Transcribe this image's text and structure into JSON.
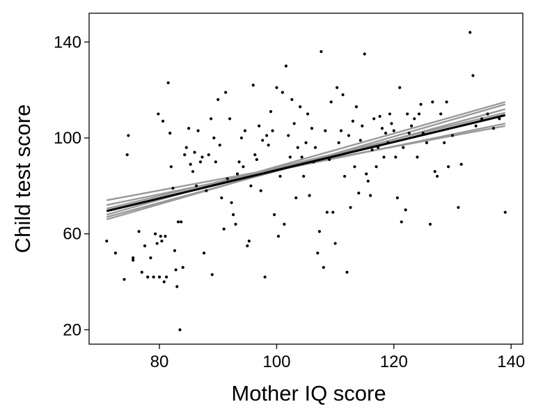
{
  "chart_data": {
    "type": "scatter",
    "xlabel": "Mother IQ score",
    "ylabel": "Child test score",
    "xlim": [
      68,
      142
    ],
    "ylim": [
      14,
      152
    ],
    "xticks": [
      80,
      100,
      120,
      140
    ],
    "yticks": [
      20,
      60,
      100,
      140
    ],
    "grid": false,
    "colors": {
      "points": "#000000",
      "fit_line": "#000000",
      "sim_lines": "#999999"
    },
    "points": [
      [
        71,
        57
      ],
      [
        72.5,
        52
      ],
      [
        74,
        41
      ],
      [
        74.5,
        93
      ],
      [
        74.7,
        101
      ],
      [
        75.5,
        49
      ],
      [
        75.5,
        50
      ],
      [
        76.5,
        61
      ],
      [
        77,
        44
      ],
      [
        77.5,
        55
      ],
      [
        78,
        42
      ],
      [
        78.5,
        50
      ],
      [
        79,
        42
      ],
      [
        79.3,
        60
      ],
      [
        79.6,
        56
      ],
      [
        79.8,
        110
      ],
      [
        80,
        42
      ],
      [
        80.2,
        59
      ],
      [
        80.4,
        57
      ],
      [
        80.6,
        107
      ],
      [
        80.8,
        40
      ],
      [
        81,
        59
      ],
      [
        81.2,
        42
      ],
      [
        81.5,
        123
      ],
      [
        81.8,
        102
      ],
      [
        82,
        88
      ],
      [
        82.3,
        79
      ],
      [
        82.6,
        53
      ],
      [
        82.8,
        45
      ],
      [
        83,
        38
      ],
      [
        83.2,
        65
      ],
      [
        83.5,
        20
      ],
      [
        83.7,
        65
      ],
      [
        84,
        46
      ],
      [
        84.3,
        93
      ],
      [
        84.6,
        96
      ],
      [
        85,
        104
      ],
      [
        85.3,
        89
      ],
      [
        85.7,
        86
      ],
      [
        86,
        94
      ],
      [
        86.3,
        80
      ],
      [
        86.6,
        103
      ],
      [
        87,
        90
      ],
      [
        87.3,
        92
      ],
      [
        87.6,
        52
      ],
      [
        88,
        78
      ],
      [
        88.4,
        93
      ],
      [
        88.8,
        108
      ],
      [
        89,
        43
      ],
      [
        89.3,
        100
      ],
      [
        89.6,
        90
      ],
      [
        90,
        116
      ],
      [
        90.3,
        97
      ],
      [
        90.6,
        75
      ],
      [
        91,
        62
      ],
      [
        91.3,
        119
      ],
      [
        91.6,
        83
      ],
      [
        92,
        108
      ],
      [
        92.3,
        73
      ],
      [
        92.6,
        68
      ],
      [
        93,
        64
      ],
      [
        93.3,
        85
      ],
      [
        93.6,
        90
      ],
      [
        94,
        100
      ],
      [
        94.3,
        88
      ],
      [
        94.6,
        103
      ],
      [
        95,
        55
      ],
      [
        95.3,
        57
      ],
      [
        95.6,
        80
      ],
      [
        96,
        122
      ],
      [
        96.3,
        93
      ],
      [
        96.6,
        91
      ],
      [
        97,
        105
      ],
      [
        97.3,
        78
      ],
      [
        97.6,
        99
      ],
      [
        98,
        42
      ],
      [
        98.3,
        101
      ],
      [
        98.6,
        97
      ],
      [
        99,
        111
      ],
      [
        99.3,
        103
      ],
      [
        99.6,
        68
      ],
      [
        100,
        121
      ],
      [
        100.3,
        59
      ],
      [
        100.6,
        84
      ],
      [
        101,
        119
      ],
      [
        101.3,
        64
      ],
      [
        101.6,
        130
      ],
      [
        102,
        101
      ],
      [
        102.3,
        92
      ],
      [
        102.6,
        116
      ],
      [
        103,
        106
      ],
      [
        103.3,
        75
      ],
      [
        103.6,
        96
      ],
      [
        104,
        113
      ],
      [
        104.3,
        92
      ],
      [
        104.6,
        84
      ],
      [
        105,
        98
      ],
      [
        105.3,
        110
      ],
      [
        105.6,
        76
      ],
      [
        106,
        104
      ],
      [
        106.3,
        90
      ],
      [
        106.6,
        96
      ],
      [
        107,
        52
      ],
      [
        107.3,
        61
      ],
      [
        107.6,
        136
      ],
      [
        108,
        46
      ],
      [
        108.3,
        103
      ],
      [
        108.6,
        69
      ],
      [
        109,
        91
      ],
      [
        109.3,
        115
      ],
      [
        109.6,
        69
      ],
      [
        110,
        56
      ],
      [
        110.3,
        121
      ],
      [
        110.6,
        98
      ],
      [
        111,
        103
      ],
      [
        111.3,
        118
      ],
      [
        111.6,
        84
      ],
      [
        112,
        44
      ],
      [
        112.3,
        101
      ],
      [
        112.6,
        71
      ],
      [
        113,
        107
      ],
      [
        113.3,
        88
      ],
      [
        113.6,
        113
      ],
      [
        114,
        77
      ],
      [
        114.3,
        99
      ],
      [
        114.6,
        105
      ],
      [
        115,
        135
      ],
      [
        115.3,
        85
      ],
      [
        115.6,
        82
      ],
      [
        116,
        76
      ],
      [
        116.3,
        95
      ],
      [
        116.6,
        108
      ],
      [
        117,
        88
      ],
      [
        117.3,
        96
      ],
      [
        117.6,
        109
      ],
      [
        118,
        104
      ],
      [
        118.3,
        92
      ],
      [
        118.6,
        102
      ],
      [
        119,
        98
      ],
      [
        119.3,
        110
      ],
      [
        119.6,
        106
      ],
      [
        120,
        103
      ],
      [
        120.3,
        92
      ],
      [
        120.6,
        75
      ],
      [
        121,
        121
      ],
      [
        121.3,
        65
      ],
      [
        121.6,
        96
      ],
      [
        122,
        70
      ],
      [
        122.3,
        110
      ],
      [
        122.6,
        102
      ],
      [
        123,
        105
      ],
      [
        123.5,
        108
      ],
      [
        124,
        92
      ],
      [
        124.3,
        110
      ],
      [
        124.6,
        114
      ],
      [
        125,
        102
      ],
      [
        125.6,
        98
      ],
      [
        126.2,
        64
      ],
      [
        126.6,
        115
      ],
      [
        127,
        86
      ],
      [
        127.4,
        84
      ],
      [
        128,
        110
      ],
      [
        128.6,
        98
      ],
      [
        129,
        115
      ],
      [
        129.3,
        88
      ],
      [
        130,
        101
      ],
      [
        131,
        71
      ],
      [
        131.5,
        89
      ],
      [
        133,
        144
      ],
      [
        133.5,
        126
      ],
      [
        134,
        105
      ],
      [
        135,
        108
      ],
      [
        136,
        110
      ],
      [
        137,
        104
      ],
      [
        138,
        108
      ],
      [
        139,
        69
      ]
    ],
    "fit_line": [
      [
        71,
        69.5
      ],
      [
        139,
        109.5
      ]
    ],
    "sim_lines": [
      [
        [
          71,
          74
        ],
        [
          139,
          105
        ]
      ],
      [
        [
          71,
          72
        ],
        [
          139,
          106
        ]
      ],
      [
        [
          71,
          67
        ],
        [
          139,
          112
        ]
      ],
      [
        [
          71,
          66
        ],
        [
          139,
          114
        ]
      ],
      [
        [
          71,
          70.5
        ],
        [
          139,
          110.5
        ]
      ],
      [
        [
          71,
          68
        ],
        [
          139,
          115
        ]
      ]
    ]
  }
}
